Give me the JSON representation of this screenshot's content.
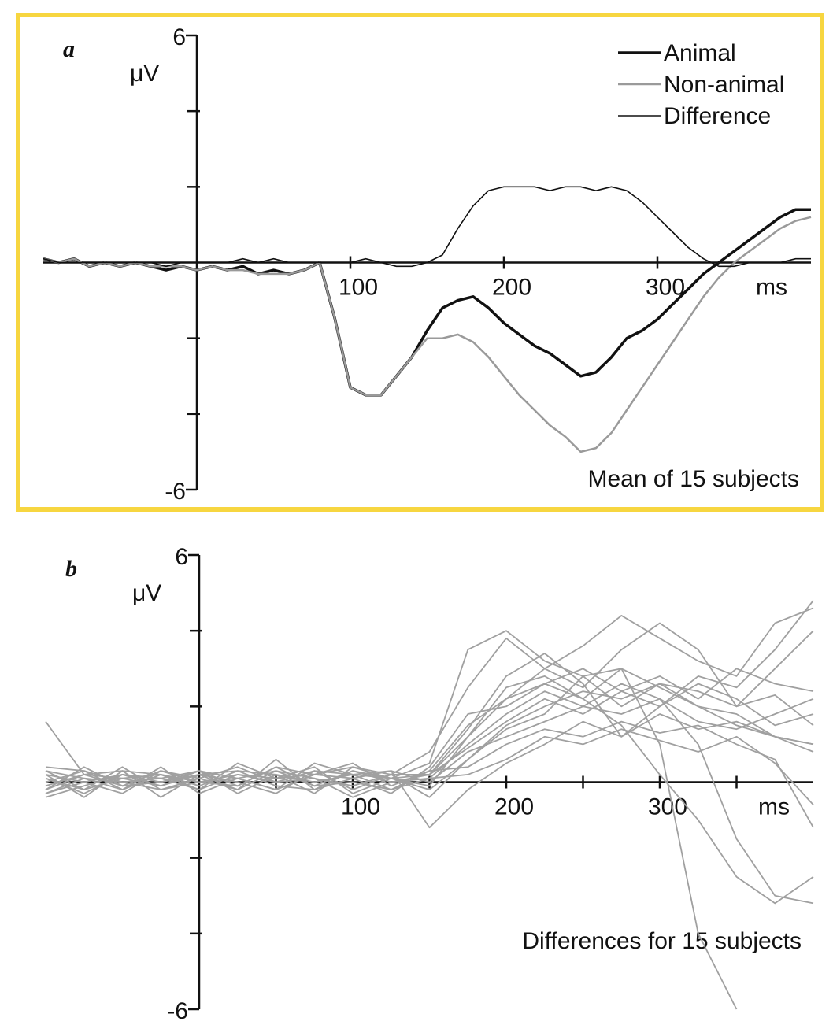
{
  "chart_data": [
    {
      "type": "line",
      "panel_label": "a",
      "ylabel": "μV",
      "xlabel": "ms",
      "annotation": "Mean of 15 subjects",
      "xlim": [
        -100,
        400
      ],
      "ylim": [
        -6,
        6
      ],
      "xticks": [
        100,
        200,
        300
      ],
      "yticks": [
        -6,
        6
      ],
      "yminorticks": [
        -4,
        -2,
        2,
        4
      ],
      "legend": "top-right",
      "x": [
        -100,
        -90,
        -80,
        -70,
        -60,
        -50,
        -40,
        -30,
        -20,
        -10,
        0,
        10,
        20,
        30,
        40,
        50,
        60,
        70,
        80,
        90,
        100,
        110,
        120,
        130,
        140,
        150,
        160,
        170,
        180,
        190,
        200,
        210,
        220,
        230,
        240,
        250,
        260,
        270,
        280,
        290,
        300,
        310,
        320,
        330,
        340,
        350,
        360,
        370,
        380,
        390,
        400
      ],
      "series": [
        {
          "name": "Animal",
          "color": "#111111",
          "line_width": 3.5,
          "values": [
            0.1,
            0.0,
            0.1,
            -0.1,
            0.0,
            -0.1,
            0.0,
            -0.1,
            -0.2,
            -0.1,
            -0.2,
            -0.1,
            -0.2,
            -0.1,
            -0.3,
            -0.2,
            -0.3,
            -0.2,
            0.0,
            -1.5,
            -3.3,
            -3.5,
            -3.5,
            -3.0,
            -2.5,
            -1.8,
            -1.2,
            -1.0,
            -0.9,
            -1.2,
            -1.6,
            -1.9,
            -2.2,
            -2.4,
            -2.7,
            -3.0,
            -2.9,
            -2.5,
            -2.0,
            -1.8,
            -1.5,
            -1.1,
            -0.7,
            -0.3,
            0.0,
            0.3,
            0.6,
            0.9,
            1.2,
            1.4,
            1.4
          ]
        },
        {
          "name": "Non-animal",
          "color": "#9a9a9a",
          "line_width": 2.5,
          "values": [
            0.1,
            0.0,
            0.1,
            -0.1,
            0.0,
            -0.1,
            0.0,
            -0.1,
            -0.1,
            -0.1,
            -0.2,
            -0.1,
            -0.2,
            -0.2,
            -0.3,
            -0.3,
            -0.3,
            -0.2,
            0.0,
            -1.5,
            -3.3,
            -3.5,
            -3.5,
            -3.0,
            -2.5,
            -2.0,
            -2.0,
            -1.9,
            -2.1,
            -2.5,
            -3.0,
            -3.5,
            -3.9,
            -4.3,
            -4.6,
            -5.0,
            -4.9,
            -4.5,
            -3.9,
            -3.3,
            -2.7,
            -2.1,
            -1.5,
            -0.9,
            -0.4,
            0.0,
            0.3,
            0.6,
            0.9,
            1.1,
            1.2
          ]
        },
        {
          "name": "Difference",
          "color": "#111111",
          "line_width": 1.6,
          "values": [
            0.1,
            0.0,
            0.0,
            0.0,
            0.0,
            0.0,
            0.0,
            0.0,
            -0.1,
            0.0,
            0.0,
            0.0,
            0.0,
            0.1,
            0.0,
            0.1,
            0.0,
            0.0,
            0.0,
            0.0,
            0.0,
            0.1,
            0.0,
            -0.1,
            -0.1,
            0.0,
            0.2,
            0.9,
            1.5,
            1.9,
            2.0,
            2.0,
            2.0,
            1.9,
            2.0,
            2.0,
            1.9,
            2.0,
            1.9,
            1.6,
            1.2,
            0.8,
            0.4,
            0.1,
            -0.1,
            -0.1,
            0.0,
            0.0,
            0.0,
            0.1,
            0.1
          ]
        }
      ]
    },
    {
      "type": "line",
      "panel_label": "b",
      "ylabel": "μV",
      "xlabel": "ms",
      "annotation": "Differences for 15 subjects",
      "xlim": [
        -100,
        400
      ],
      "ylim": [
        -6,
        6
      ],
      "xticks": [
        100,
        200,
        300
      ],
      "xminorticks": [
        50,
        150,
        250,
        350
      ],
      "yticks": [
        -6,
        6
      ],
      "yminorticks": [
        -4,
        -2,
        2,
        4
      ],
      "color": "#a0a0a0",
      "x": [
        -100,
        -75,
        -50,
        -25,
        0,
        25,
        50,
        75,
        100,
        125,
        150,
        175,
        200,
        225,
        250,
        275,
        300,
        325,
        350,
        375,
        400
      ],
      "series": [
        {
          "values": [
            0.3,
            -0.2,
            0.1,
            0.2,
            -0.1,
            0.3,
            0.2,
            -0.3,
            0.4,
            0.1,
            0.5,
            3.5,
            4.0,
            3.2,
            2.8,
            3.0,
            2.5,
            2.0,
            1.5,
            1.2,
            1.0
          ]
        },
        {
          "values": [
            -0.2,
            0.4,
            -0.1,
            0.0,
            0.2,
            -0.2,
            0.3,
            0.1,
            -0.1,
            0.2,
            0.8,
            2.5,
            3.8,
            3.0,
            2.5,
            3.5,
            4.2,
            3.5,
            2.0,
            3.0,
            4.0
          ]
        },
        {
          "values": [
            0.1,
            -0.3,
            0.2,
            0.1,
            0.3,
            0.1,
            -0.2,
            0.2,
            0.5,
            -0.1,
            0.3,
            1.5,
            2.2,
            2.6,
            3.0,
            2.4,
            2.0,
            2.8,
            2.5,
            3.5,
            4.8
          ]
        },
        {
          "values": [
            -0.3,
            0.1,
            0.0,
            -0.2,
            0.1,
            0.4,
            0.0,
            0.3,
            -0.2,
            0.2,
            0.2,
            1.2,
            2.5,
            2.8,
            2.2,
            3.0,
            1.0,
            -4.0,
            -6.0,
            null,
            null
          ]
        },
        {
          "values": [
            0.2,
            0.0,
            -0.3,
            0.3,
            0.0,
            -0.1,
            0.4,
            0.2,
            0.1,
            -0.3,
            0.4,
            1.8,
            2.0,
            2.6,
            2.2,
            1.5,
            0.2,
            -1.0,
            -2.5,
            -3.2,
            -2.5
          ]
        },
        {
          "values": [
            -0.1,
            0.2,
            0.3,
            -0.4,
            0.2,
            0.3,
            -0.1,
            -0.2,
            0.3,
            0.0,
            0.1,
            1.0,
            1.8,
            2.4,
            2.0,
            2.6,
            2.2,
            1.0,
            -1.5,
            -3.0,
            -3.2
          ]
        },
        {
          "values": [
            0.4,
            0.3,
            0.0,
            0.1,
            -0.2,
            0.2,
            0.1,
            0.4,
            -0.3,
            0.1,
            -0.2,
            0.6,
            1.5,
            2.0,
            2.4,
            2.2,
            2.6,
            2.0,
            1.8,
            1.2,
            0.8
          ]
        },
        {
          "values": [
            -0.4,
            -0.1,
            0.2,
            0.0,
            0.3,
            -0.3,
            0.2,
            0.0,
            0.2,
            0.3,
            0.0,
            0.8,
            1.2,
            1.6,
            2.0,
            1.8,
            2.2,
            1.6,
            1.4,
            1.8,
            2.2
          ]
        },
        {
          "values": [
            0.0,
            0.3,
            -0.2,
            0.2,
            0.0,
            0.1,
            0.3,
            -0.1,
            0.0,
            -0.2,
            0.3,
            0.4,
            1.0,
            1.4,
            1.2,
            1.6,
            1.3,
            1.5,
            1.0,
            0.6,
            -1.2
          ]
        },
        {
          "values": [
            1.6,
            0.2,
            0.1,
            -0.1,
            0.2,
            0.0,
            -0.3,
            0.3,
            0.2,
            0.1,
            -0.1,
            1.2,
            2.2,
            3.0,
            3.6,
            4.4,
            3.8,
            3.2,
            2.8,
            4.2,
            4.6
          ]
        },
        {
          "values": [
            0.2,
            -0.4,
            0.3,
            0.2,
            -0.2,
            0.5,
            0.1,
            0.2,
            0.4,
            0.2,
            -0.4,
            0.6,
            1.4,
            1.8,
            2.8,
            2.0,
            2.6,
            2.4,
            2.0,
            2.3,
            1.5
          ]
        },
        {
          "values": [
            -0.2,
            0.2,
            -0.1,
            0.3,
            0.1,
            -0.2,
            0.6,
            -0.2,
            0.1,
            0.3,
            -1.2,
            -0.2,
            0.5,
            1.0,
            1.6,
            1.2,
            1.8,
            1.4,
            1.6,
            1.2,
            1.0
          ]
        },
        {
          "values": [
            0.1,
            -0.2,
            0.4,
            -0.2,
            0.0,
            0.2,
            0.0,
            0.1,
            -0.4,
            0.0,
            0.2,
            0.9,
            1.6,
            2.2,
            1.8,
            2.4,
            2.8,
            2.2,
            3.0,
            2.6,
            2.4
          ]
        },
        {
          "values": [
            0.3,
            0.1,
            -0.2,
            0.4,
            -0.3,
            0.1,
            -0.2,
            0.5,
            0.2,
            -0.2,
            0.1,
            0.2,
            0.6,
            1.2,
            1.0,
            1.4,
            1.1,
            0.8,
            1.2,
            0.5,
            -0.6
          ]
        },
        {
          "values": [
            -0.3,
            0.0,
            0.2,
            -0.1,
            0.3,
            -0.1,
            0.4,
            -0.1,
            0.3,
            0.1,
            0.2,
            1.4,
            2.8,
            3.4,
            2.6,
            1.2,
            2.0,
            2.6,
            2.2,
            1.5,
            1.8
          ]
        }
      ]
    }
  ]
}
